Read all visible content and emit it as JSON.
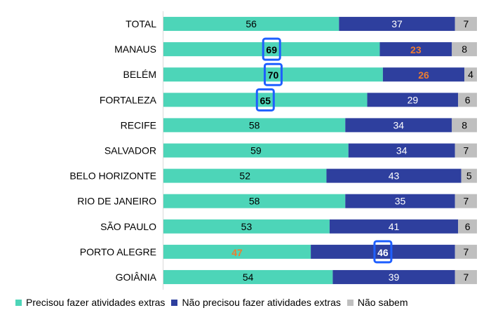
{
  "chart_data": {
    "type": "bar",
    "orientation": "horizontal",
    "stacked": true,
    "normalized_percent": true,
    "categories": [
      "TOTAL",
      "MANAUS",
      "BELÉM",
      "FORTALEZA",
      "RECIFE",
      "SALVADOR",
      "BELO HORIZONTE",
      "RIO DE JANEIRO",
      "SÃO PAULO",
      "PORTO ALEGRE",
      "GOIÂNIA"
    ],
    "series": [
      {
        "name": "Precisou fazer atividades extras",
        "color": "#4DD5B8",
        "label_color": "#000000",
        "values": [
          56,
          69,
          70,
          65,
          58,
          59,
          52,
          58,
          53,
          47,
          54
        ]
      },
      {
        "name": "Não precisou fazer atividades extras",
        "color": "#2E3F9E",
        "label_color": "#ffffff",
        "values": [
          37,
          23,
          26,
          29,
          34,
          34,
          43,
          35,
          41,
          46,
          39
        ]
      },
      {
        "name": "Não sabem",
        "color": "#BFBFBF",
        "label_color": "#000000",
        "values": [
          7,
          8,
          4,
          6,
          8,
          7,
          5,
          7,
          6,
          7,
          7
        ]
      }
    ],
    "highlight_orange": [
      {
        "series": 1,
        "category": 1
      },
      {
        "series": 1,
        "category": 2
      },
      {
        "series": 0,
        "category": 9
      }
    ],
    "highlight_boxed": [
      {
        "series": 0,
        "category": 1
      },
      {
        "series": 0,
        "category": 2
      },
      {
        "series": 0,
        "category": 3
      },
      {
        "series": 1,
        "category": 9
      }
    ],
    "highlight_colors": {
      "orange": "#ED7D31",
      "box": "#1F5FFF"
    },
    "xlim": [
      0,
      100
    ],
    "grid": false,
    "legend_position": "bottom"
  }
}
